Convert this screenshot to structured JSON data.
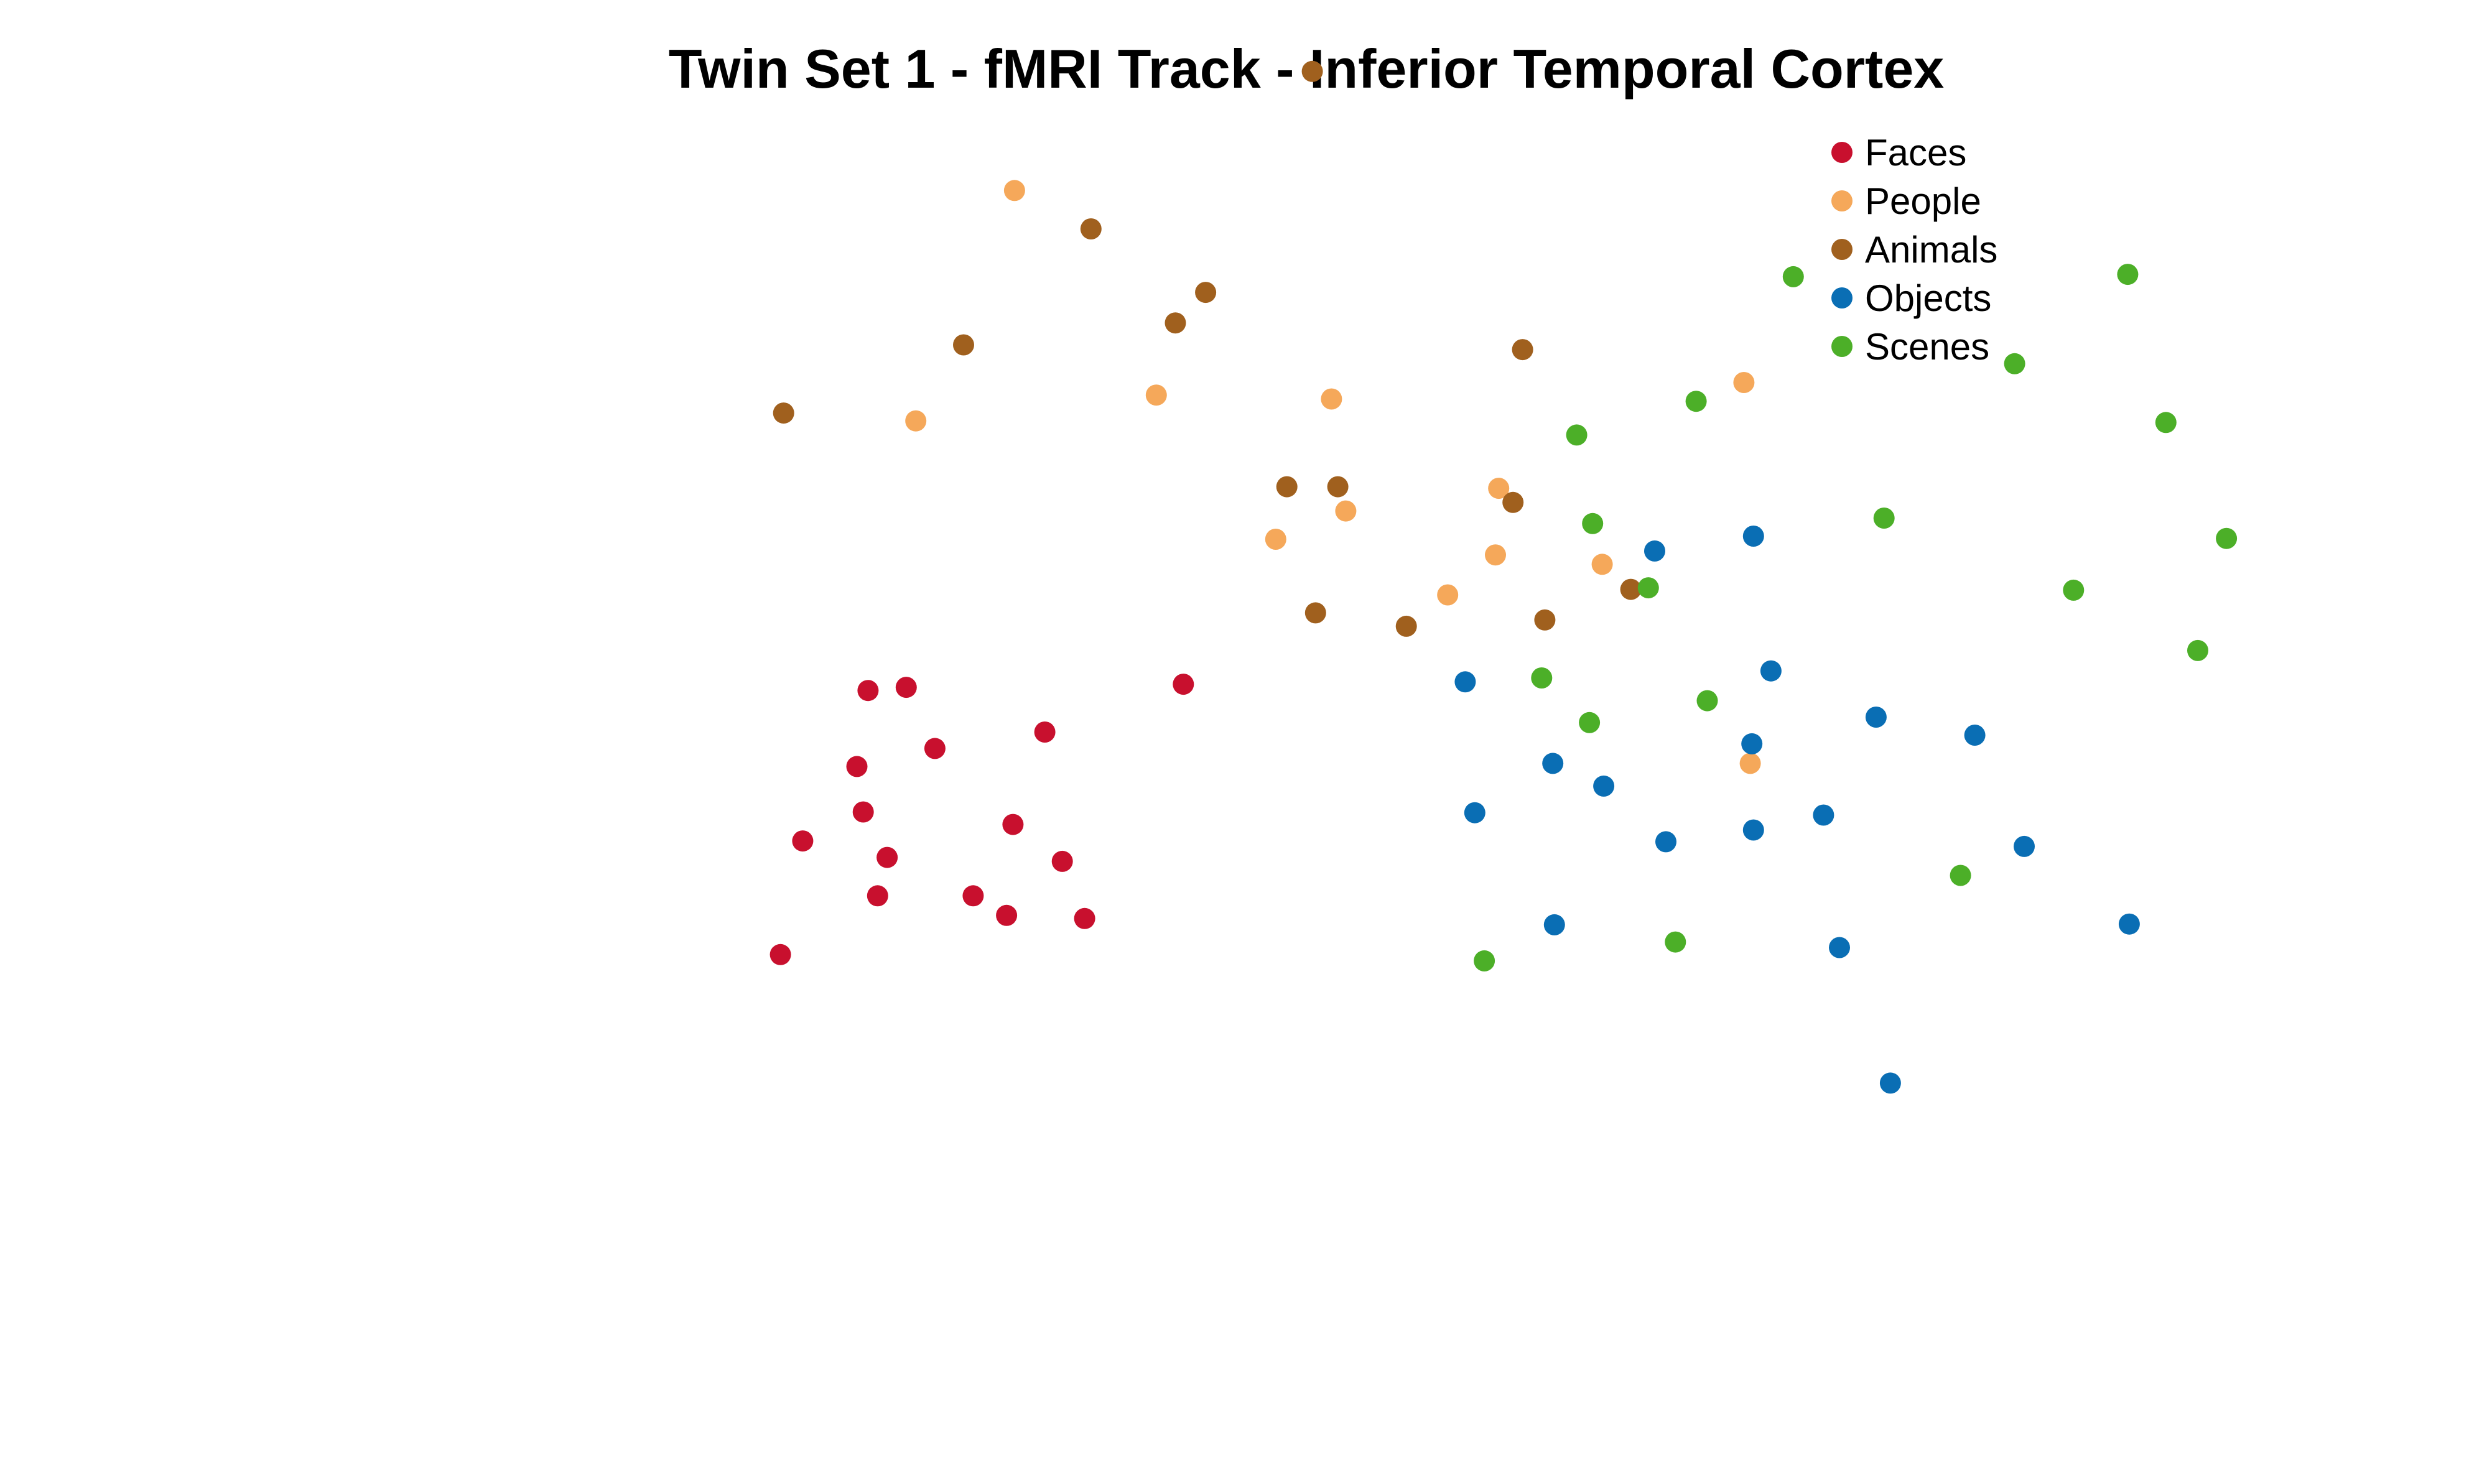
{
  "chart_data": {
    "type": "scatter",
    "title": "Twin Set 1 - fMRI Track - Inferior Temporal Cortex",
    "xlabel": "",
    "ylabel": "",
    "axes_visible": false,
    "grid": false,
    "legend_position": "top-right",
    "series": [
      {
        "name": "Faces",
        "color": "#C8102E",
        "points": [
          [
            0.65,
            6.07
          ],
          [
            0.89,
            6.11
          ],
          [
            2.63,
            6.15
          ],
          [
            1.76,
            5.54
          ],
          [
            1.07,
            5.33
          ],
          [
            0.58,
            5.1
          ],
          [
            0.62,
            4.52
          ],
          [
            1.56,
            4.36
          ],
          [
            0.24,
            4.15
          ],
          [
            0.77,
            3.94
          ],
          [
            1.87,
            3.89
          ],
          [
            0.71,
            3.45
          ],
          [
            1.31,
            3.45
          ],
          [
            1.52,
            3.2
          ],
          [
            2.01,
            3.16
          ],
          [
            0.1,
            2.7
          ]
        ]
      },
      {
        "name": "People",
        "color": "#F5A85A",
        "points": [
          [
            1.57,
            12.45
          ],
          [
            0.95,
            9.51
          ],
          [
            2.46,
            9.84
          ],
          [
            3.56,
            9.79
          ],
          [
            6.15,
            10.0
          ],
          [
            4.61,
            8.65
          ],
          [
            3.65,
            8.36
          ],
          [
            3.21,
            8.0
          ],
          [
            4.59,
            7.8
          ],
          [
            5.26,
            7.68
          ],
          [
            4.29,
            7.29
          ],
          [
            6.19,
            5.14
          ]
        ]
      },
      {
        "name": "Animals",
        "color": "#A0601E",
        "points": [
          [
            3.44,
            13.97
          ],
          [
            2.05,
            11.96
          ],
          [
            2.77,
            11.15
          ],
          [
            2.58,
            10.76
          ],
          [
            1.25,
            10.48
          ],
          [
            0.12,
            9.61
          ],
          [
            4.76,
            10.42
          ],
          [
            3.28,
            8.67
          ],
          [
            3.6,
            8.67
          ],
          [
            4.7,
            8.47
          ],
          [
            5.44,
            7.36
          ],
          [
            3.46,
            7.06
          ],
          [
            4.03,
            6.89
          ],
          [
            4.9,
            6.97
          ]
        ]
      },
      {
        "name": "Objects",
        "color": "#0A6EB4",
        "points": [
          [
            6.21,
            8.04
          ],
          [
            5.59,
            7.85
          ],
          [
            6.32,
            6.32
          ],
          [
            4.4,
            6.18
          ],
          [
            6.98,
            5.73
          ],
          [
            7.6,
            5.5
          ],
          [
            6.2,
            5.39
          ],
          [
            4.95,
            5.14
          ],
          [
            5.27,
            4.85
          ],
          [
            6.65,
            4.48
          ],
          [
            4.46,
            4.51
          ],
          [
            6.21,
            4.29
          ],
          [
            5.66,
            4.14
          ],
          [
            7.91,
            4.08
          ],
          [
            4.96,
            3.08
          ],
          [
            6.75,
            2.79
          ],
          [
            8.57,
            3.09
          ],
          [
            7.07,
            1.06
          ]
        ]
      },
      {
        "name": "Scenes",
        "color": "#4CAF28",
        "points": [
          [
            6.46,
            11.35
          ],
          [
            8.56,
            11.38
          ],
          [
            7.85,
            10.24
          ],
          [
            5.85,
            9.76
          ],
          [
            8.8,
            9.49
          ],
          [
            5.1,
            9.33
          ],
          [
            7.03,
            8.27
          ],
          [
            5.2,
            8.2
          ],
          [
            9.18,
            8.01
          ],
          [
            5.55,
            7.38
          ],
          [
            8.22,
            7.35
          ],
          [
            9.0,
            6.58
          ],
          [
            4.88,
            6.23
          ],
          [
            5.92,
            5.94
          ],
          [
            5.18,
            5.66
          ],
          [
            7.51,
            3.71
          ],
          [
            5.72,
            2.86
          ],
          [
            4.52,
            2.62
          ]
        ]
      }
    ]
  }
}
